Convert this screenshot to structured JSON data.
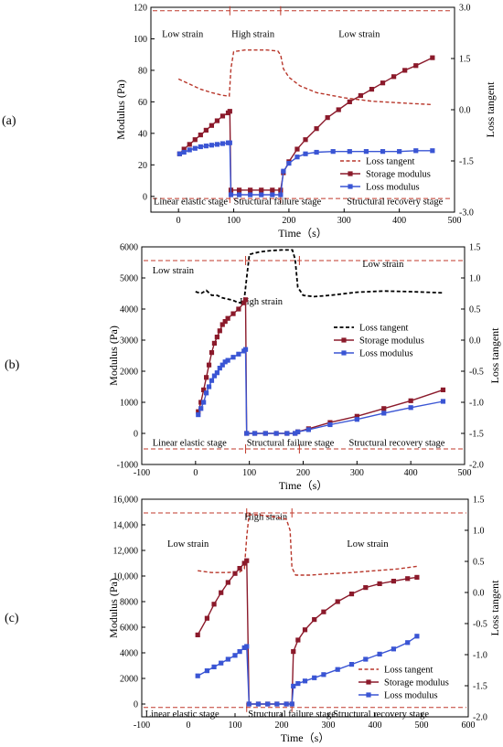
{
  "colors": {
    "storage": "#8b1a2b",
    "loss": "#3a55d4",
    "tangent_a": "#b8372b",
    "tangent_b": "#000000",
    "tangent_c": "#b8372b",
    "dashed_line": "#c0392b"
  },
  "chart_data": [
    {
      "type": "line",
      "panel": "(a)",
      "xlabel": "Time（s）",
      "ylabel": "Modulus (Pa)",
      "y2label": "Loss tangent",
      "xlim": [
        -50,
        500
      ],
      "ylim": [
        -10,
        120
      ],
      "y2lim": [
        -3.0,
        3.0
      ],
      "x_ticks": [
        0,
        100,
        200,
        300,
        400,
        500
      ],
      "y_ticks": [
        0,
        20,
        40,
        60,
        80,
        100,
        120
      ],
      "y2_ticks": [
        3.0,
        1.5,
        0.0,
        -1.5,
        -3.0
      ],
      "y2_tick_labels": [
        "3.0",
        "1.5",
        "0.0",
        "-1.5",
        "-3.0"
      ],
      "annotations": {
        "low_strain_left": "Low strain",
        "high_strain": "High strain",
        "low_strain_right": "Low strain",
        "stage_linear": "Linear elastic stage",
        "stage_failure": "Structural failure stage",
        "stage_recovery": "Structural recovery stage"
      },
      "legend": [
        "Loss tangent",
        "Storage modulus",
        "Loss modulus"
      ],
      "legend_position": "lower-right",
      "boundaries": [
        93,
        185
      ],
      "series": [
        {
          "name": "Loss tangent",
          "role": "tangent",
          "axis": "right",
          "style": "dash",
          "x": [
            0,
            20,
            40,
            60,
            80,
            92,
            95,
            100,
            120,
            140,
            160,
            180,
            185,
            190,
            200,
            220,
            250,
            300,
            350,
            400,
            460
          ],
          "y": [
            0.9,
            0.75,
            0.6,
            0.5,
            0.42,
            0.4,
            1.2,
            1.7,
            1.75,
            1.75,
            1.75,
            1.72,
            1.6,
            1.2,
            0.95,
            0.7,
            0.5,
            0.35,
            0.25,
            0.2,
            0.15
          ]
        },
        {
          "name": "Storage modulus",
          "role": "storage",
          "axis": "left",
          "x": [
            2,
            10,
            20,
            30,
            40,
            50,
            60,
            70,
            80,
            90,
            93,
            95,
            110,
            130,
            150,
            170,
            185,
            190,
            200,
            215,
            230,
            250,
            270,
            290,
            310,
            330,
            350,
            370,
            390,
            410,
            430,
            460
          ],
          "y": [
            27,
            30,
            33,
            36,
            39,
            42,
            45,
            48,
            51,
            53,
            54,
            4,
            4,
            4,
            4,
            4,
            4,
            15,
            22,
            30,
            36,
            43,
            50,
            55,
            60,
            64,
            68,
            72,
            76,
            80,
            83,
            88
          ]
        },
        {
          "name": "Loss modulus",
          "role": "loss",
          "axis": "left",
          "x": [
            2,
            10,
            20,
            30,
            40,
            50,
            60,
            70,
            80,
            90,
            93,
            95,
            110,
            130,
            150,
            170,
            185,
            190,
            200,
            215,
            230,
            250,
            280,
            310,
            340,
            370,
            400,
            430,
            460
          ],
          "y": [
            27,
            28,
            29.5,
            30.5,
            31.5,
            32,
            32.5,
            33,
            33.5,
            34,
            34,
            1,
            1,
            1,
            1,
            1,
            1,
            16,
            21,
            25,
            27,
            28,
            28.5,
            28.5,
            28.5,
            28.5,
            28.5,
            29,
            29
          ]
        }
      ]
    },
    {
      "type": "line",
      "panel": "(b)",
      "xlabel": "Time（s）",
      "ylabel": "Modulus (Pa)",
      "y2label": "Loss tangent",
      "xlim": [
        -100,
        500
      ],
      "ylim": [
        -1000,
        6000
      ],
      "y2lim": [
        -2.0,
        1.5
      ],
      "x_ticks": [
        -100,
        0,
        100,
        200,
        300,
        400,
        500
      ],
      "y_ticks": [
        -1000,
        0,
        1000,
        2000,
        3000,
        4000,
        5000,
        6000
      ],
      "y2_ticks": [
        1.5,
        1.0,
        0.5,
        0.0,
        -0.5,
        -1.0,
        -1.5,
        -2.0
      ],
      "y2_tick_labels": [
        "1.5",
        "1.0",
        "0.5",
        "0.0",
        "-0.5",
        "-1.0",
        "-1.5",
        "-2.0"
      ],
      "annotations": {
        "low_strain_left": "Low strain",
        "high_strain": "High strain",
        "low_strain_right": "Low strain",
        "stage_linear": "Linear elastic stage",
        "stage_failure": "Structural failure stage",
        "stage_recovery": "Structural recovery stage"
      },
      "legend": [
        "Loss tangent",
        "Storage modulus",
        "Loss modulus"
      ],
      "legend_position": "right",
      "boundaries": [
        93,
        193
      ],
      "series": [
        {
          "name": "Loss tangent",
          "role": "tangent",
          "axis": "right",
          "style": "dash",
          "x": [
            0,
            10,
            20,
            30,
            40,
            50,
            60,
            70,
            80,
            90,
            95,
            100,
            120,
            140,
            160,
            180,
            185,
            190,
            200,
            220,
            250,
            300,
            350,
            400,
            460
          ],
          "y": [
            0.78,
            0.75,
            0.8,
            0.72,
            0.72,
            0.68,
            0.66,
            0.64,
            0.6,
            0.62,
            1.0,
            1.38,
            1.42,
            1.44,
            1.45,
            1.45,
            1.3,
            0.85,
            0.72,
            0.7,
            0.72,
            0.77,
            0.79,
            0.78,
            0.76
          ]
        },
        {
          "name": "Storage modulus",
          "role": "storage",
          "axis": "left",
          "x": [
            5,
            10,
            15,
            20,
            25,
            30,
            35,
            40,
            45,
            50,
            55,
            60,
            70,
            80,
            90,
            93,
            95,
            110,
            130,
            150,
            170,
            185,
            190,
            210,
            250,
            300,
            350,
            400,
            460
          ],
          "y": [
            700,
            1000,
            1400,
            1800,
            2200,
            2600,
            2900,
            3100,
            3300,
            3500,
            3600,
            3700,
            3850,
            4000,
            4200,
            4300,
            0,
            0,
            0,
            0,
            0,
            0,
            50,
            150,
            350,
            550,
            800,
            1050,
            1400
          ]
        },
        {
          "name": "Loss modulus",
          "role": "loss",
          "axis": "left",
          "x": [
            5,
            10,
            15,
            20,
            25,
            30,
            35,
            40,
            45,
            50,
            55,
            60,
            70,
            80,
            90,
            93,
            95,
            110,
            130,
            150,
            170,
            185,
            190,
            210,
            250,
            300,
            350,
            400,
            460
          ],
          "y": [
            600,
            800,
            1000,
            1300,
            1500,
            1700,
            1850,
            1950,
            2100,
            2200,
            2300,
            2350,
            2450,
            2550,
            2650,
            2700,
            0,
            0,
            0,
            0,
            0,
            0,
            50,
            120,
            280,
            450,
            650,
            830,
            1030
          ]
        }
      ]
    },
    {
      "type": "line",
      "panel": "(c)",
      "xlabel": "Time（s）",
      "ylabel": "Modulus (Pa)",
      "y2label": "Loss tangent",
      "xlim": [
        -100,
        600
      ],
      "ylim": [
        -1000,
        16000
      ],
      "y2lim": [
        -2.0,
        1.5
      ],
      "x_ticks": [
        -100,
        0,
        100,
        200,
        300,
        400,
        500,
        600
      ],
      "y_ticks": [
        0,
        2000,
        4000,
        6000,
        8000,
        10000,
        12000,
        14000,
        16000
      ],
      "y_tick_labels": [
        "0",
        "2000",
        "4000",
        "6000",
        "8000",
        "10,000",
        "12,000",
        "14,000",
        "16,000"
      ],
      "y2_ticks": [
        1.5,
        1.0,
        0.5,
        0.0,
        -0.5,
        -1.0,
        -1.5,
        -2.0
      ],
      "y2_tick_labels": [
        "1.5",
        "1.0",
        "0.5",
        "0.0",
        "-0.5",
        "-1.0",
        "-1.5",
        "-2.0"
      ],
      "annotations": {
        "low_strain_left": "Low strain",
        "high_strain": "High strain",
        "low_strain_right": "Low strain",
        "stage_linear": "Linear elastic stage",
        "stage_failure": "Structural failure stage",
        "stage_recovery": "Structural recovery stage"
      },
      "legend": [
        "Loss tangent",
        "Storage modulus",
        "Loss modulus"
      ],
      "legend_position": "lower-right",
      "boundaries": [
        125,
        222
      ],
      "series": [
        {
          "name": "Loss tangent",
          "role": "tangent",
          "axis": "right",
          "style": "dash",
          "x": [
            20,
            50,
            80,
            110,
            120,
            125,
            130,
            150,
            180,
            210,
            218,
            222,
            230,
            260,
            300,
            350,
            400,
            450,
            490
          ],
          "y": [
            0.35,
            0.32,
            0.32,
            0.33,
            0.38,
            0.9,
            1.25,
            1.25,
            1.22,
            1.18,
            1.0,
            0.4,
            0.28,
            0.28,
            0.3,
            0.32,
            0.35,
            0.38,
            0.42
          ]
        },
        {
          "name": "Storage modulus",
          "role": "storage",
          "axis": "left",
          "x": [
            20,
            40,
            55,
            70,
            85,
            100,
            110,
            120,
            125,
            130,
            150,
            170,
            190,
            210,
            222,
            225,
            235,
            250,
            270,
            290,
            320,
            350,
            380,
            410,
            440,
            470,
            490
          ],
          "y": [
            5400,
            6700,
            7800,
            8700,
            9500,
            10200,
            10600,
            11000,
            11200,
            0,
            0,
            0,
            0,
            0,
            0,
            4100,
            5000,
            5800,
            6600,
            7200,
            8000,
            8600,
            9100,
            9400,
            9600,
            9800,
            9900
          ]
        },
        {
          "name": "Loss modulus",
          "role": "loss",
          "axis": "left",
          "x": [
            20,
            40,
            55,
            70,
            85,
            100,
            110,
            120,
            125,
            130,
            150,
            170,
            190,
            210,
            222,
            225,
            235,
            250,
            270,
            290,
            320,
            350,
            380,
            410,
            440,
            470,
            490
          ],
          "y": [
            2200,
            2600,
            2900,
            3200,
            3500,
            3800,
            4100,
            4400,
            4500,
            0,
            0,
            0,
            0,
            0,
            0,
            1400,
            1600,
            1800,
            2050,
            2300,
            2700,
            3100,
            3500,
            3900,
            4300,
            4800,
            5300
          ]
        }
      ]
    }
  ]
}
